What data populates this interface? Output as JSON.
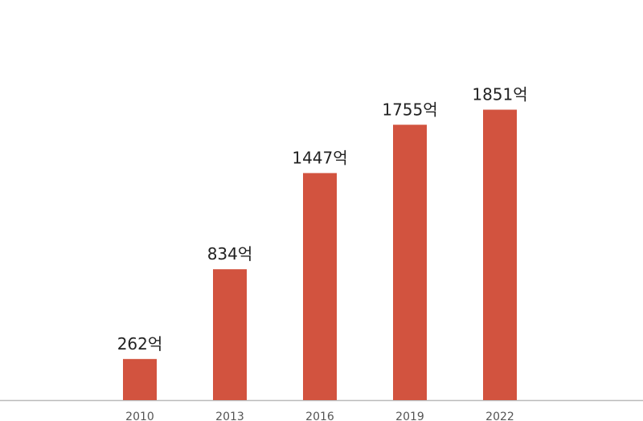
{
  "chart_data": {
    "type": "bar",
    "categories": [
      "2010",
      "2013",
      "2016",
      "2019",
      "2022"
    ],
    "values": [
      262,
      834,
      1447,
      1755,
      1851
    ],
    "value_labels": [
      "262억",
      "834억",
      "1447억",
      "1755억",
      "1851억"
    ],
    "color": "#d2533f",
    "ylim": [
      0,
      2550
    ]
  }
}
